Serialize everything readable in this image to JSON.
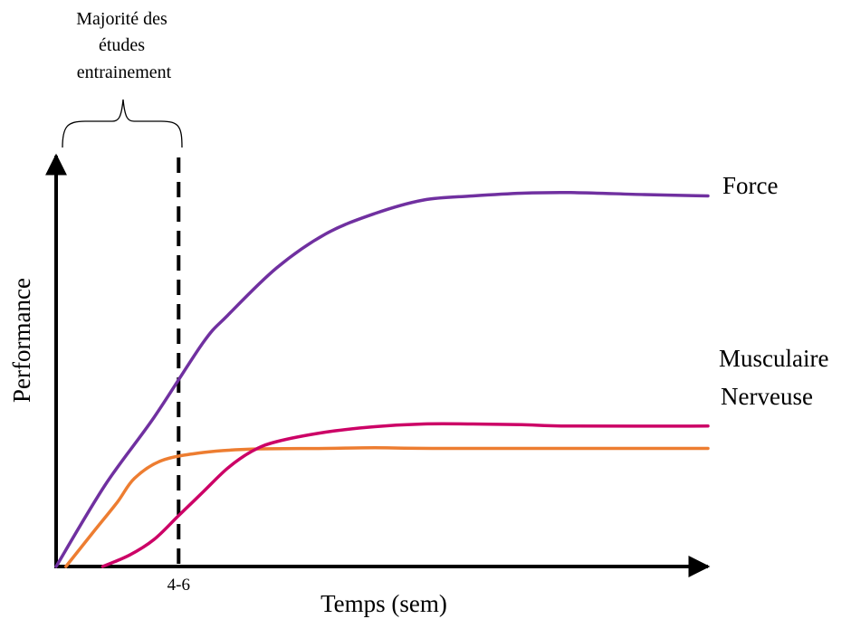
{
  "chart_data": {
    "type": "line",
    "title": "",
    "xlabel": "Temps (sem)",
    "ylabel": "Performance",
    "tick_labels": [
      "4-6"
    ],
    "annotation": "Majorité des\nétudes\nentrainement",
    "colors": {
      "Force": "#7030a0",
      "Musculaire": "#cc0066",
      "Nerveuse": "#ed7d31",
      "axis": "#000000",
      "dashed_marker": "#000000"
    },
    "series": [
      {
        "name": "Force",
        "points": [
          [
            0,
            0
          ],
          [
            2,
            12
          ],
          [
            4,
            22
          ],
          [
            6,
            33
          ],
          [
            7,
            37
          ],
          [
            9,
            44
          ],
          [
            11,
            49
          ],
          [
            13,
            52
          ],
          [
            15,
            54
          ],
          [
            17,
            54.6
          ],
          [
            19,
            55
          ],
          [
            21,
            55.1
          ],
          [
            24,
            54.8
          ],
          [
            26.6,
            54.6
          ]
        ]
      },
      {
        "name": "Musculaire",
        "points": [
          [
            1.9,
            0
          ],
          [
            3,
            1.7
          ],
          [
            4,
            4
          ],
          [
            5,
            7.5
          ],
          [
            6,
            11
          ],
          [
            7,
            14.5
          ],
          [
            8,
            17
          ],
          [
            9,
            18.4
          ],
          [
            11,
            19.8
          ],
          [
            13,
            20.6
          ],
          [
            15,
            21
          ],
          [
            17,
            21
          ],
          [
            19,
            20.9
          ],
          [
            21,
            20.7
          ],
          [
            26.6,
            20.7
          ]
        ]
      },
      {
        "name": "Nerveuse",
        "points": [
          [
            0.4,
            0
          ],
          [
            1.5,
            5
          ],
          [
            2.5,
            9.5
          ],
          [
            3.2,
            13
          ],
          [
            4.3,
            15.6
          ],
          [
            6,
            16.8
          ],
          [
            8,
            17.3
          ],
          [
            11,
            17.4
          ],
          [
            13,
            17.5
          ],
          [
            16,
            17.4
          ],
          [
            26.6,
            17.4
          ]
        ]
      }
    ],
    "marker": {
      "x": 5,
      "label": "4-6"
    },
    "xlim": [
      0,
      26.6
    ],
    "ylim": [
      0,
      60
    ]
  }
}
